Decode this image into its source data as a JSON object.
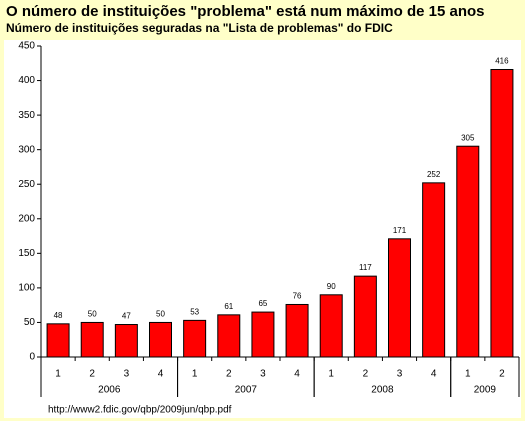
{
  "chart_data": {
    "type": "bar",
    "title": "O número de instituições \"problema\" está num máximo de 15 anos",
    "subtitle": "Número de instituições seguradas na \"Lista de problemas\" do FDIC",
    "categories": [
      "1",
      "2",
      "3",
      "4",
      "1",
      "2",
      "3",
      "4",
      "1",
      "2",
      "3",
      "4",
      "1",
      "2"
    ],
    "category_groups": [
      "2006",
      "2007",
      "2008",
      "2009"
    ],
    "values": [
      48,
      50,
      47,
      50,
      53,
      61,
      65,
      76,
      90,
      117,
      171,
      252,
      305,
      416
    ],
    "color": "#ff0000",
    "ylim": [
      0,
      450
    ],
    "yticks": [
      0,
      50,
      100,
      150,
      200,
      250,
      300,
      350,
      400,
      450
    ],
    "grid": false,
    "source": "http://www2.fdic.gov/qbp/2009jun/qbp.pdf"
  }
}
